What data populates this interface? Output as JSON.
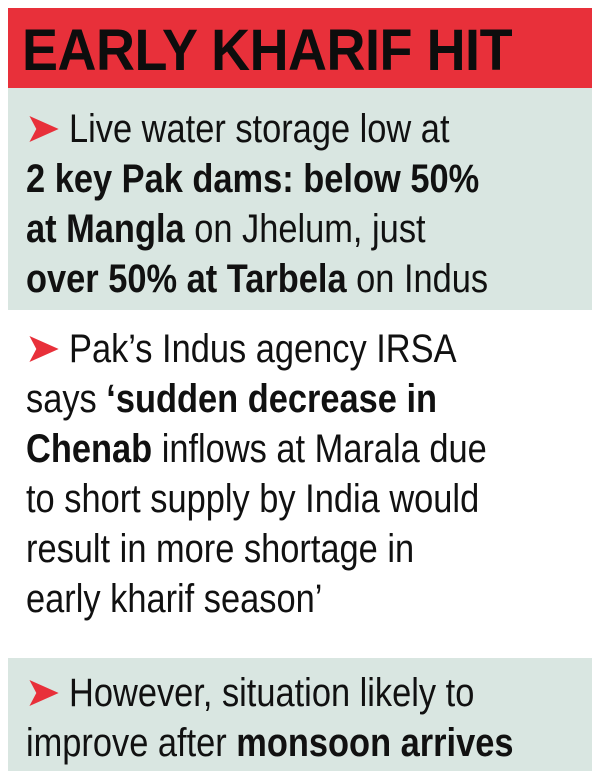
{
  "title": "EARLY KHARIF HIT",
  "colors": {
    "title_bar": "#e8303a",
    "panel_tint": "#d9e6e1",
    "arrow": "#e8303a"
  },
  "bullet_icon": "red-chevron-arrow-icon",
  "items": [
    {
      "lines": [
        [
          {
            "t": "Live water storage low at",
            "b": false
          }
        ],
        [
          {
            "t": "2 key Pak dams: below 50%",
            "b": true
          }
        ],
        [
          {
            "t": "at Mangla",
            "b": true
          },
          {
            "t": " on Jhelum, just",
            "b": false
          }
        ],
        [
          {
            "t": "over 50% at Tarbela",
            "b": true
          },
          {
            "t": " on Indus",
            "b": false
          }
        ]
      ]
    },
    {
      "lines": [
        [
          {
            "t": "Pak’s Indus agency IRSA",
            "b": false
          }
        ],
        [
          {
            "t": "says ",
            "b": false
          },
          {
            "t": "‘sudden decrease in",
            "b": true
          }
        ],
        [
          {
            "t": "Chenab",
            "b": true
          },
          {
            "t": " inflows at Marala due",
            "b": false
          }
        ],
        [
          {
            "t": "to short supply by India would",
            "b": false
          }
        ],
        [
          {
            "t": "result in more shortage in",
            "b": false
          }
        ],
        [
          {
            "t": "early kharif season’",
            "b": false
          }
        ]
      ]
    },
    {
      "lines": [
        [
          {
            "t": "However, situation likely to",
            "b": false
          }
        ],
        [
          {
            "t": "improve after ",
            "b": false
          },
          {
            "t": "monsoon arrives",
            "b": true
          }
        ]
      ]
    }
  ]
}
